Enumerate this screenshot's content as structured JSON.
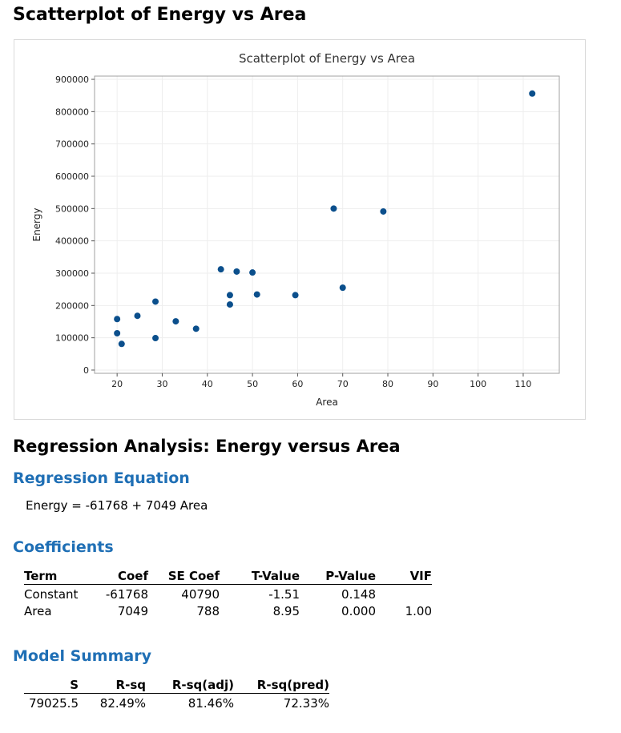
{
  "page_title": "Scatterplot of Energy vs Area",
  "chart_data": {
    "type": "scatter",
    "title": "Scatterplot of Energy vs Area",
    "xlabel": "Area",
    "ylabel": "Energy",
    "xlim": [
      15,
      118
    ],
    "ylim": [
      -10000,
      910000
    ],
    "x_ticks": [
      20,
      30,
      40,
      50,
      60,
      70,
      80,
      90,
      100,
      110
    ],
    "y_ticks": [
      0,
      100000,
      200000,
      300000,
      400000,
      500000,
      600000,
      700000,
      800000,
      900000
    ],
    "grid": true,
    "marker_color": "#0b4f8c",
    "points": [
      {
        "x": 20,
        "y": 158000
      },
      {
        "x": 20,
        "y": 114000
      },
      {
        "x": 21,
        "y": 81000
      },
      {
        "x": 24.5,
        "y": 168000
      },
      {
        "x": 28.5,
        "y": 212000
      },
      {
        "x": 28.5,
        "y": 99000
      },
      {
        "x": 33,
        "y": 151000
      },
      {
        "x": 37.5,
        "y": 128000
      },
      {
        "x": 43,
        "y": 312000
      },
      {
        "x": 45,
        "y": 232000
      },
      {
        "x": 45,
        "y": 203000
      },
      {
        "x": 46.5,
        "y": 305000
      },
      {
        "x": 50,
        "y": 302000
      },
      {
        "x": 51,
        "y": 234000
      },
      {
        "x": 59.5,
        "y": 232000
      },
      {
        "x": 68,
        "y": 500000
      },
      {
        "x": 70,
        "y": 255000
      },
      {
        "x": 79,
        "y": 491000
      },
      {
        "x": 112,
        "y": 856000
      }
    ]
  },
  "regression": {
    "title": "Regression Analysis: Energy versus Area",
    "equation_heading": "Regression Equation",
    "equation": "Energy = -61768 + 7049 Area",
    "coefficients_heading": "Coefficients",
    "coefficients": {
      "headers": [
        "Term",
        "Coef",
        "SE Coef",
        "T-Value",
        "P-Value",
        "VIF"
      ],
      "rows": [
        [
          "Constant",
          "-61768",
          "40790",
          "-1.51",
          "0.148",
          ""
        ],
        [
          "Area",
          "7049",
          "788",
          "8.95",
          "0.000",
          "1.00"
        ]
      ]
    },
    "model_summary_heading": "Model Summary",
    "model_summary": {
      "headers": [
        "S",
        "R-sq",
        "R-sq(adj)",
        "R-sq(pred)"
      ],
      "rows": [
        [
          "79025.5",
          "82.49%",
          "81.46%",
          "72.33%"
        ]
      ]
    }
  },
  "colors": {
    "heading_blue": "#1f6fb5",
    "marker": "#0b4f8c"
  }
}
